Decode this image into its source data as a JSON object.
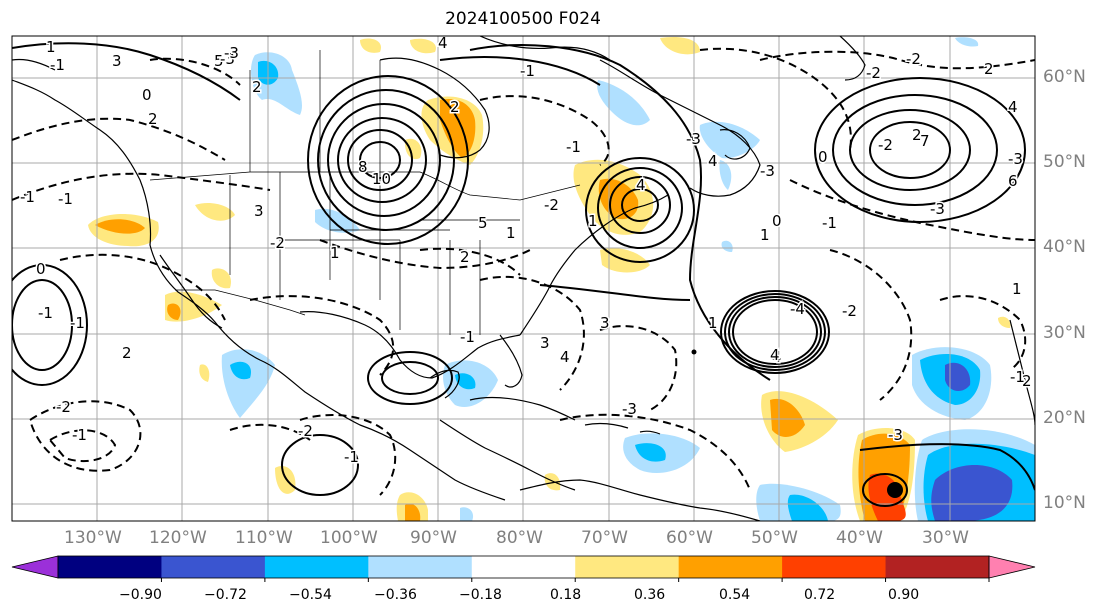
{
  "title": "2024100500 F024",
  "lon_labels": [
    "130°W",
    "120°W",
    "110°W",
    "100°W",
    "90°W",
    "80°W",
    "70°W",
    "60°W",
    "50°W",
    "40°W",
    "30°W"
  ],
  "lat_labels": [
    "60°N",
    "50°N",
    "40°N",
    "30°N",
    "20°N",
    "10°N"
  ],
  "colorbar": {
    "ticks": [
      "−0.90",
      "−0.72",
      "−0.54",
      "−0.36",
      "−0.18",
      "0.18",
      "0.36",
      "0.54",
      "0.72",
      "0.90"
    ],
    "colors": [
      "#9b30d9",
      "#000080",
      "#3a55d0",
      "#00bfff",
      "#b0e0ff",
      "#ffffff",
      "#ffe880",
      "#ffa000",
      "#ff4000",
      "#b22222",
      "#ff80b0"
    ]
  },
  "shading_colors": {
    "light_blue": "#b0e0ff",
    "cyan": "#00bfff",
    "blue": "#3a55d0",
    "yellow": "#ffe880",
    "orange": "#ffa000",
    "red_orange": "#ff4000"
  },
  "contour_labels": [
    "1",
    "-1",
    "3",
    "5",
    "4",
    "2",
    "10",
    "8",
    "2",
    "3",
    "-1",
    "-1",
    "4",
    "2",
    "1",
    "-2",
    "2",
    "3",
    "-1",
    "-1",
    "-1",
    "-2",
    "0",
    "-1",
    "3",
    "4",
    "-3",
    "0",
    "1",
    "-1",
    "1",
    "-2",
    "2",
    "-4",
    "4",
    "1",
    "-2",
    "6",
    "-3",
    "-2",
    "-2",
    "2",
    "0",
    "-3",
    "4",
    "7",
    "-3",
    "4",
    "-3",
    "1",
    "5",
    "-2",
    "-1",
    "1",
    "2",
    "-1",
    "-2",
    "-3",
    "0",
    "-3",
    "-2",
    "-1",
    "-1",
    "2",
    "-3",
    "4"
  ]
}
